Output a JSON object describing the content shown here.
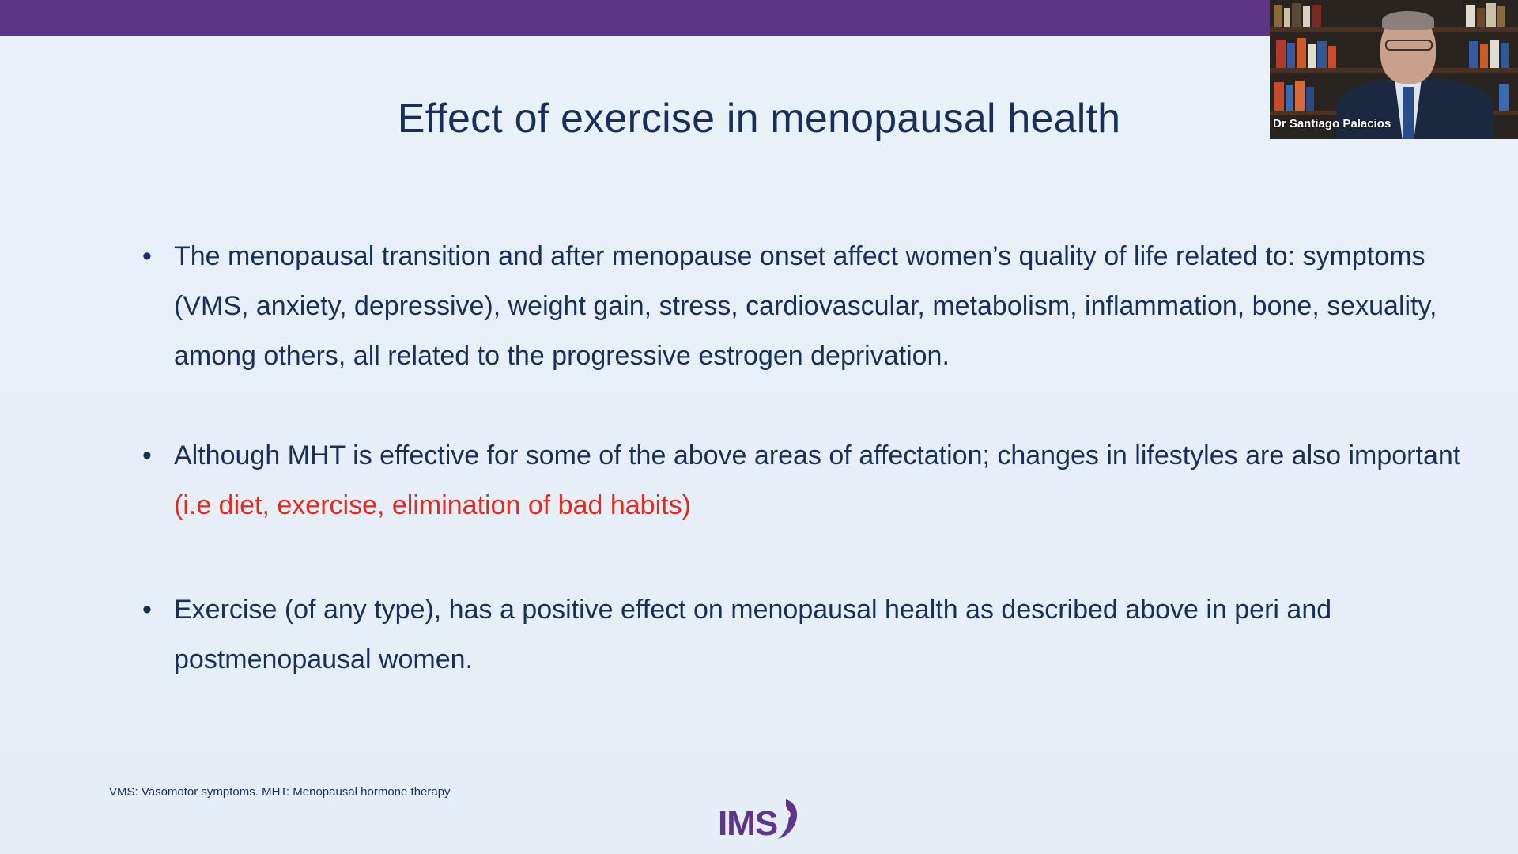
{
  "slide": {
    "title": "Effect of exercise in menopausal health",
    "bullets": [
      {
        "bullet_char": "•",
        "text": "The menopausal transition and after menopause onset affect women’s quality of life related to: symptoms (VMS, anxiety, depressive), weight gain, stress, cardiovascular, metabolism, inflammation, bone, sexuality, among others, all related to the progressive estrogen deprivation.",
        "highlight": ""
      },
      {
        "bullet_char": "•",
        "text": "Although MHT is effective for some of the above areas of affectation; changes in lifestyles are also important ",
        "highlight": "(i.e diet, exercise, elimination of bad habits)"
      },
      {
        "bullet_char": "•",
        "text": "Exercise (of any type), has a positive effect on menopausal health as described above in peri and postmenopausal women.",
        "highlight": ""
      }
    ],
    "footnote": "VMS: Vasomotor symptoms. MHT: Menopausal hormone therapy",
    "logo_text": "IMS",
    "colors": {
      "top_bar": "#5e3587",
      "title_text": "#1a2e5a",
      "highlight": "#e02b20",
      "background": "#e6eef7"
    }
  },
  "video": {
    "participant_name": "Dr Santiago Palacios"
  }
}
